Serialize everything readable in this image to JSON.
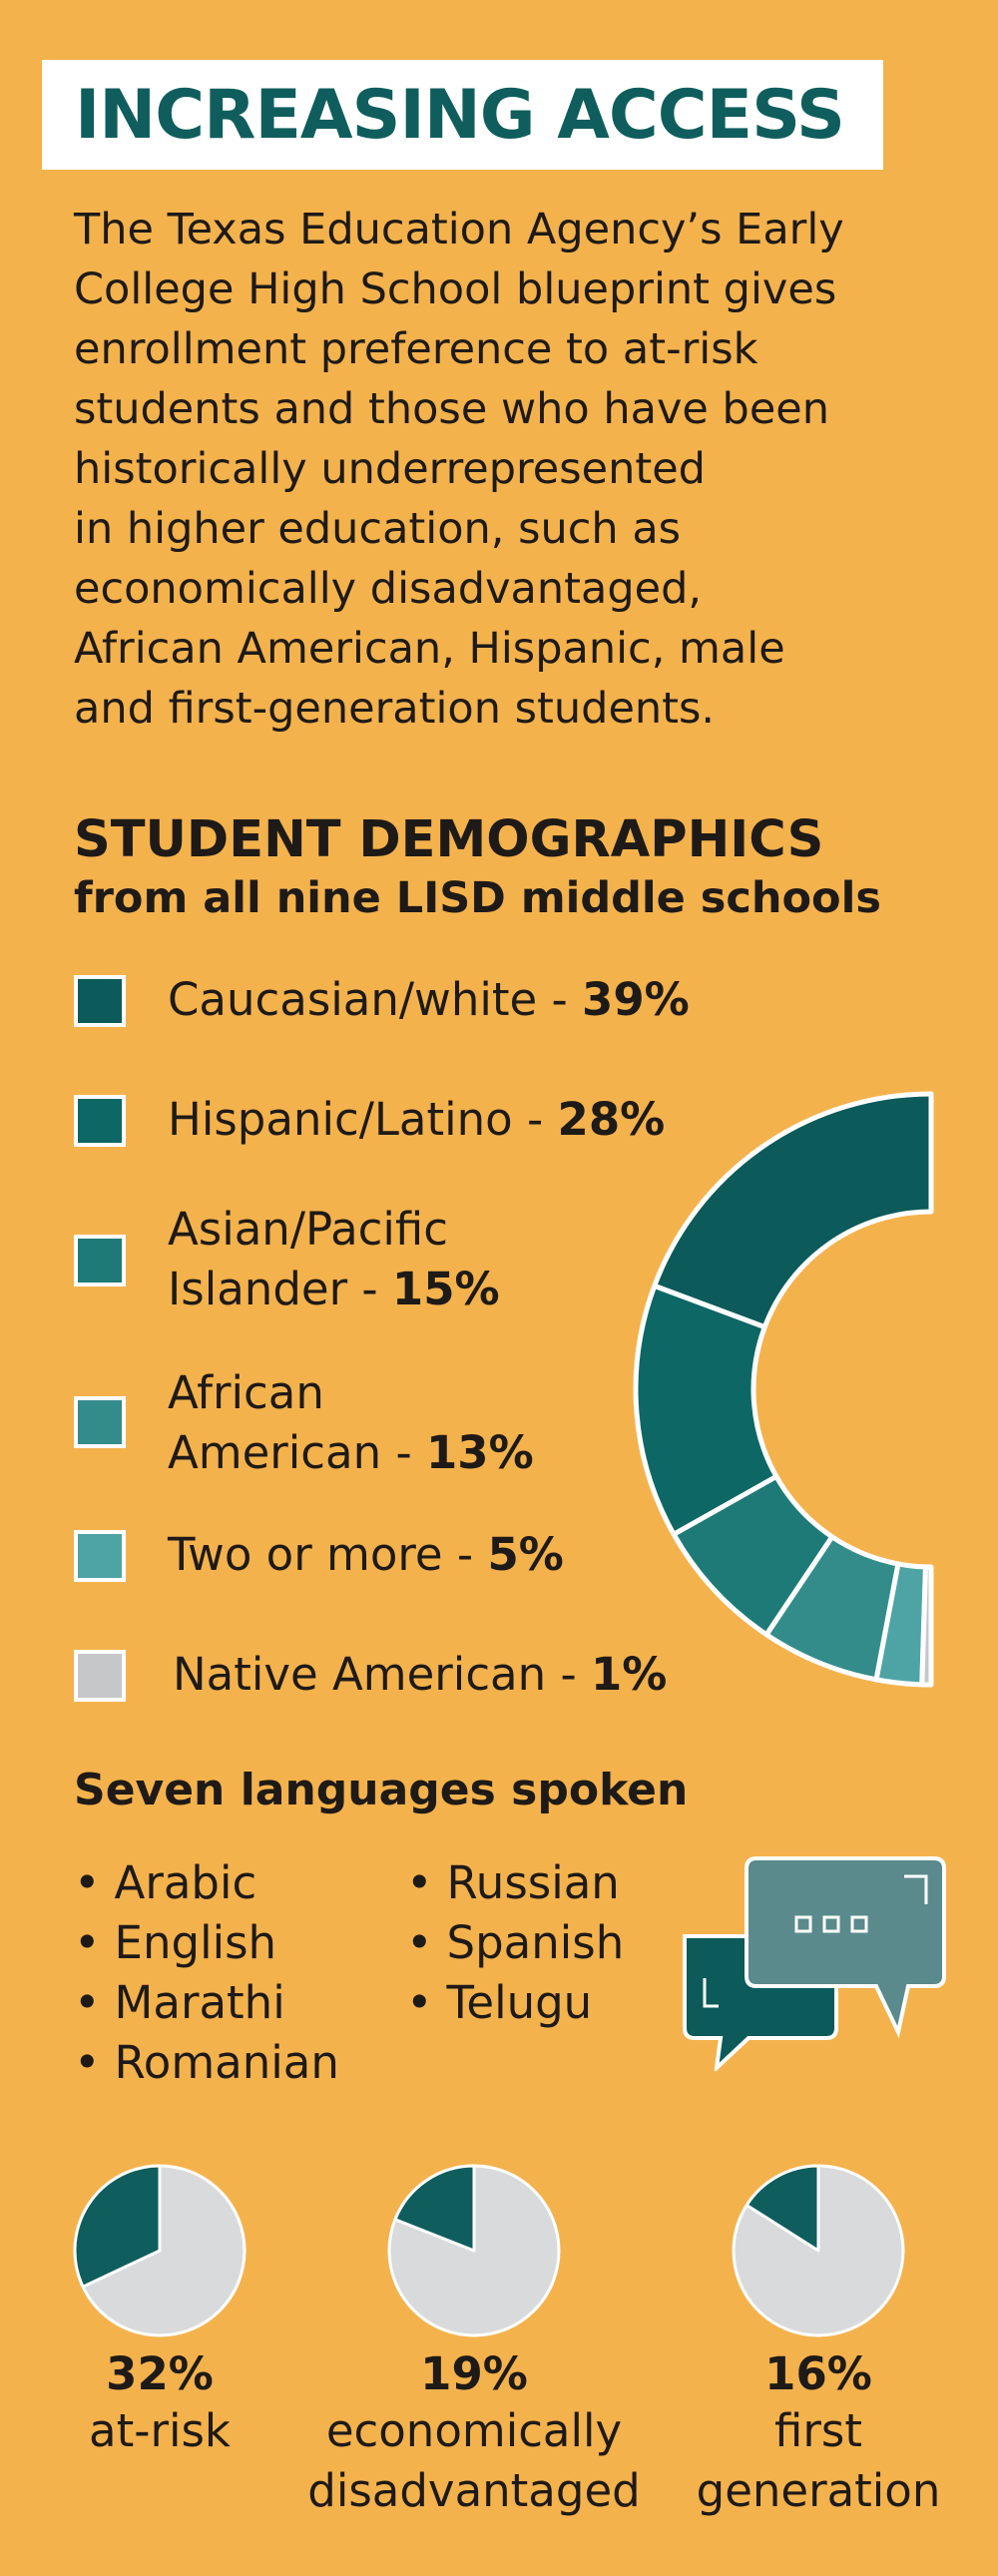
{
  "title": "INCREASING ACCESS",
  "intro_lines": [
    "The Texas Education Agency’s Early",
    "College High School blueprint gives",
    "enrollment preference to at-risk",
    "students and those who have been",
    "historically underrepresented",
    "in higher education, such as",
    "economically disadvantaged,",
    "African American, Hispanic, male",
    "and first-generation students."
  ],
  "demographics": {
    "heading": "STUDENT DEMOGRAPHICS",
    "subheading": "from all nine LISD middle schools"
  },
  "chart_data": {
    "type": "pie",
    "style": "half-donut",
    "categories": [
      "Caucasian/white",
      "Hispanic/Latino",
      "Asian/Pacific Islander",
      "African American",
      "Two or more",
      "Native American"
    ],
    "values": [
      39,
      28,
      15,
      13,
      5,
      1
    ],
    "label_lines": [
      [
        "Caucasian/white - "
      ],
      [
        "Hispanic/Latino - "
      ],
      [
        "Asian/Pacific",
        "Islander - "
      ],
      [
        "African",
        "American - "
      ],
      [
        "Two or more - "
      ],
      [
        "Native American - "
      ]
    ],
    "value_labels": [
      "39%",
      "28%",
      "15%",
      "13%",
      "5%",
      "1%"
    ],
    "colors": [
      "#0C5A5A",
      "#0D6765",
      "#1E7A77",
      "#338C8A",
      "#4EA4A4",
      "#C5C7C9"
    ]
  },
  "languages": {
    "heading": "Seven languages spoken",
    "left": [
      "Arabic",
      "English",
      "Marathi",
      "Romanian"
    ],
    "right": [
      "Russian",
      "Spanish",
      "Telugu"
    ],
    "bullet": "•"
  },
  "stats": [
    {
      "value": 32,
      "pct": "32%",
      "label_lines": [
        "at-risk"
      ]
    },
    {
      "value": 19,
      "pct": "19%",
      "label_lines": [
        "economically",
        "disadvantaged"
      ]
    },
    {
      "value": 16,
      "pct": "16%",
      "label_lines": [
        "first",
        "generation"
      ]
    }
  ],
  "colors": {
    "background": "#F4B24D",
    "accent": "#0F5E5D",
    "pie_rest": "#D9DADB",
    "chat_back": "#5A8A8C",
    "chat_front": "#0C5A5A"
  },
  "icons": {
    "chat": "chat-bubbles-icon"
  }
}
